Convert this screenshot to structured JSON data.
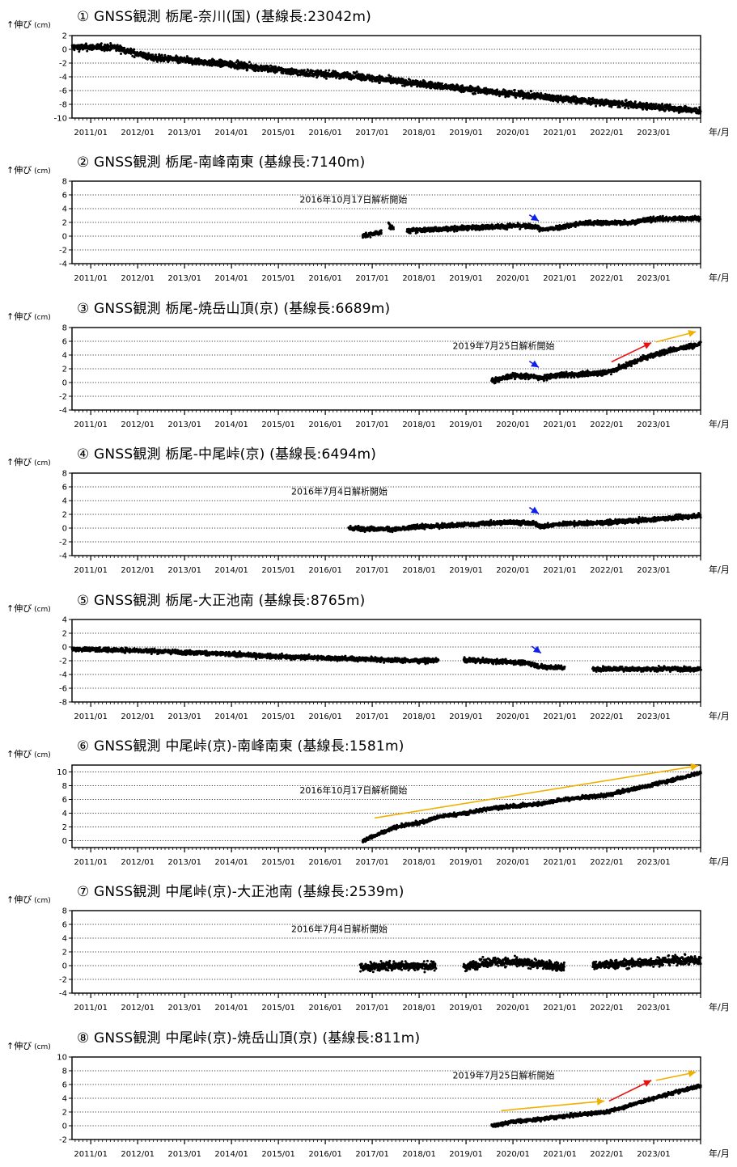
{
  "y_axis_label": "↑伸び",
  "y_axis_unit": "(cm)",
  "x_axis_unit": "年/月",
  "colors": {
    "blue_arrow": "#1020e8",
    "red_arrow": "#e81010",
    "yellow_arrow": "#f0b000",
    "data": "#000000"
  },
  "chart_data": [
    {
      "type": "scatter",
      "title": "① GNSS観測 栃尾-奈川(国) (基線長:23042m)",
      "xlabel": "年/月",
      "ylabel": "伸び (cm)",
      "xticks": [
        "2011/01",
        "2012/01",
        "2013/01",
        "2014/01",
        "2015/01",
        "2016/01",
        "2017/01",
        "2018/01",
        "2019/01",
        "2020/01",
        "2021/01",
        "2022/01",
        "2023/01"
      ],
      "xlim": [
        2010.6,
        2024.0
      ],
      "ylim": [
        -10,
        2
      ],
      "yticks": [
        2,
        0,
        -2,
        -4,
        -6,
        -8,
        -10
      ],
      "annotation": "",
      "series": [
        {
          "segments": [
            [
              2010.6,
              2024.0
            ]
          ],
          "values": [
            [
              2010.6,
              0.3
            ],
            [
              2011.5,
              0.3
            ],
            [
              2012.3,
              -1.2
            ],
            [
              2014.0,
              -2.2
            ],
            [
              2015.5,
              -3.4
            ],
            [
              2016.5,
              -3.8
            ],
            [
              2017.5,
              -4.6
            ],
            [
              2019.0,
              -5.8
            ],
            [
              2020.5,
              -6.8
            ],
            [
              2022.0,
              -7.8
            ],
            [
              2023.5,
              -8.6
            ],
            [
              2024.0,
              -9.0
            ]
          ],
          "noise": 0.45
        }
      ],
      "arrows": []
    },
    {
      "type": "scatter",
      "title": "② GNSS観測 栃尾-南峰南東 (基線長:7140m)",
      "xlabel": "年/月",
      "ylabel": "伸び (cm)",
      "xticks": [
        "2011/01",
        "2012/01",
        "2013/01",
        "2014/01",
        "2015/01",
        "2016/01",
        "2017/01",
        "2018/01",
        "2019/01",
        "2020/01",
        "2021/01",
        "2022/01",
        "2023/01"
      ],
      "xlim": [
        2010.6,
        2024.0
      ],
      "ylim": [
        -4,
        8
      ],
      "yticks": [
        8,
        6,
        4,
        2,
        0,
        -2,
        -4
      ],
      "annotation": "2016年10月17日解析開始",
      "series": [
        {
          "segments": [
            [
              2016.8,
              2017.2
            ],
            [
              2017.35,
              2017.45
            ],
            [
              2017.75,
              2024.0
            ]
          ],
          "values": [
            [
              2016.8,
              0.0
            ],
            [
              2017.2,
              0.6
            ],
            [
              2017.3,
              2.3
            ],
            [
              2017.4,
              1.2
            ],
            [
              2017.8,
              0.8
            ],
            [
              2019.0,
              1.2
            ],
            [
              2020.0,
              1.5
            ],
            [
              2020.5,
              1.4
            ],
            [
              2020.6,
              0.9
            ],
            [
              2021.0,
              1.3
            ],
            [
              2021.5,
              1.9
            ],
            [
              2022.5,
              2.0
            ],
            [
              2023.0,
              2.5
            ],
            [
              2024.0,
              2.6
            ]
          ],
          "noise": 0.32
        }
      ],
      "arrows": [
        {
          "color": "blue",
          "from": [
            2020.35,
            3.1
          ],
          "to": [
            2020.55,
            2.2
          ]
        }
      ]
    },
    {
      "type": "scatter",
      "title": "③ GNSS観測 栃尾-焼岳山頂(京) (基線長:6689m)",
      "xlabel": "年/月",
      "ylabel": "伸び (cm)",
      "xticks": [
        "2011/01",
        "2012/01",
        "2013/01",
        "2014/01",
        "2015/01",
        "2016/01",
        "2017/01",
        "2018/01",
        "2019/01",
        "2020/01",
        "2021/01",
        "2022/01",
        "2023/01"
      ],
      "xlim": [
        2010.6,
        2024.0
      ],
      "ylim": [
        -4,
        8
      ],
      "yticks": [
        8,
        6,
        4,
        2,
        0,
        -2,
        -4
      ],
      "annotation": "2019年7月25日解析開始",
      "series": [
        {
          "segments": [
            [
              2019.55,
              2024.0
            ]
          ],
          "values": [
            [
              2019.55,
              0.2
            ],
            [
              2020.0,
              1.0
            ],
            [
              2020.5,
              0.8
            ],
            [
              2020.6,
              0.6
            ],
            [
              2021.0,
              1.1
            ],
            [
              2021.5,
              1.2
            ],
            [
              2022.0,
              1.5
            ],
            [
              2022.3,
              2.2
            ],
            [
              2022.8,
              3.6
            ],
            [
              2023.3,
              4.6
            ],
            [
              2024.0,
              5.6
            ]
          ],
          "noise": 0.35
        }
      ],
      "arrows": [
        {
          "color": "blue",
          "from": [
            2020.35,
            3.1
          ],
          "to": [
            2020.55,
            2.2
          ]
        },
        {
          "color": "red",
          "from": [
            2022.1,
            3.0
          ],
          "to": [
            2022.95,
            5.8
          ]
        },
        {
          "color": "yellow",
          "from": [
            2023.05,
            5.9
          ],
          "to": [
            2023.9,
            7.4
          ]
        }
      ]
    },
    {
      "type": "scatter",
      "title": "④ GNSS観測 栃尾-中尾峠(京) (基線長:6494m)",
      "xlabel": "年/月",
      "ylabel": "伸び (cm)",
      "xticks": [
        "2011/01",
        "2012/01",
        "2013/01",
        "2014/01",
        "2015/01",
        "2016/01",
        "2017/01",
        "2018/01",
        "2019/01",
        "2020/01",
        "2021/01",
        "2022/01",
        "2023/01"
      ],
      "xlim": [
        2010.6,
        2024.0
      ],
      "ylim": [
        -4,
        8
      ],
      "yticks": [
        8,
        6,
        4,
        2,
        0,
        -2,
        -4
      ],
      "annotation": "2016年7月4日解析開始",
      "series": [
        {
          "segments": [
            [
              2016.5,
              2024.0
            ]
          ],
          "values": [
            [
              2016.5,
              0.0
            ],
            [
              2017.5,
              -0.2
            ],
            [
              2018.0,
              0.2
            ],
            [
              2019.0,
              0.5
            ],
            [
              2020.0,
              0.9
            ],
            [
              2020.5,
              0.6
            ],
            [
              2020.6,
              0.2
            ],
            [
              2021.0,
              0.6
            ],
            [
              2022.0,
              0.8
            ],
            [
              2023.0,
              1.3
            ],
            [
              2024.0,
              1.8
            ]
          ],
          "noise": 0.3
        }
      ],
      "arrows": [
        {
          "color": "blue",
          "from": [
            2020.35,
            3.0
          ],
          "to": [
            2020.55,
            2.1
          ]
        }
      ]
    },
    {
      "type": "scatter",
      "title": "⑤ GNSS観測 栃尾-大正池南 (基線長:8765m)",
      "xlabel": "年/月",
      "ylabel": "伸び (cm)",
      "xticks": [
        "2011/01",
        "2012/01",
        "2013/01",
        "2014/01",
        "2015/01",
        "2016/01",
        "2017/01",
        "2018/01",
        "2019/01",
        "2020/01",
        "2021/01",
        "2022/01",
        "2023/01"
      ],
      "xlim": [
        2010.6,
        2024.0
      ],
      "ylim": [
        -8,
        4
      ],
      "yticks": [
        4,
        2,
        0,
        -2,
        -4,
        -6,
        -8
      ],
      "annotation": "",
      "series": [
        {
          "segments": [
            [
              2010.6,
              2018.4
            ],
            [
              2018.95,
              2021.1
            ],
            [
              2021.7,
              2024.0
            ]
          ],
          "values": [
            [
              2010.6,
              -0.3
            ],
            [
              2012.0,
              -0.5
            ],
            [
              2013.5,
              -0.9
            ],
            [
              2015.0,
              -1.4
            ],
            [
              2016.5,
              -1.7
            ],
            [
              2018.0,
              -2.0
            ],
            [
              2019.0,
              -1.9
            ],
            [
              2020.3,
              -2.3
            ],
            [
              2020.6,
              -2.9
            ],
            [
              2021.1,
              -3.0
            ],
            [
              2021.7,
              -3.2
            ],
            [
              2024.0,
              -3.2
            ]
          ],
          "noise": 0.3
        }
      ],
      "arrows": [
        {
          "color": "blue",
          "from": [
            2020.4,
            0.1
          ],
          "to": [
            2020.6,
            -0.9
          ]
        }
      ]
    },
    {
      "type": "scatter",
      "title": "⑥ GNSS観測 中尾峠(京)-南峰南東 (基線長:1581m)",
      "xlabel": "年/月",
      "ylabel": "伸び (cm)",
      "xticks": [
        "2011/01",
        "2012/01",
        "2013/01",
        "2014/01",
        "2015/01",
        "2016/01",
        "2017/01",
        "2018/01",
        "2019/01",
        "2020/01",
        "2021/01",
        "2022/01",
        "2023/01"
      ],
      "xlim": [
        2010.6,
        2024.0
      ],
      "ylim": [
        -1,
        11
      ],
      "yticks": [
        10,
        8,
        6,
        4,
        2,
        0
      ],
      "annotation": "2016年10月17日解析開始",
      "series": [
        {
          "segments": [
            [
              2016.8,
              2024.0
            ]
          ],
          "values": [
            [
              2016.8,
              0.0
            ],
            [
              2017.2,
              1.1
            ],
            [
              2017.5,
              2.0
            ],
            [
              2018.0,
              2.6
            ],
            [
              2018.5,
              3.6
            ],
            [
              2019.0,
              4.0
            ],
            [
              2019.5,
              4.7
            ],
            [
              2020.0,
              5.0
            ],
            [
              2020.5,
              5.3
            ],
            [
              2021.0,
              5.9
            ],
            [
              2021.5,
              6.3
            ],
            [
              2022.0,
              6.6
            ],
            [
              2022.5,
              7.4
            ],
            [
              2023.0,
              8.2
            ],
            [
              2023.5,
              9.0
            ],
            [
              2024.0,
              9.9
            ]
          ],
          "noise": 0.25
        }
      ],
      "arrows": [
        {
          "color": "yellow",
          "from": [
            2017.05,
            3.3
          ],
          "to": [
            2023.95,
            10.9
          ]
        }
      ]
    },
    {
      "type": "scatter",
      "title": "⑦ GNSS観測 中尾峠(京)-大正池南 (基線長:2539m)",
      "xlabel": "年/月",
      "ylabel": "伸び (cm)",
      "xticks": [
        "2011/01",
        "2012/01",
        "2013/01",
        "2014/01",
        "2015/01",
        "2016/01",
        "2017/01",
        "2018/01",
        "2019/01",
        "2020/01",
        "2021/01",
        "2022/01",
        "2023/01"
      ],
      "xlim": [
        2010.6,
        2024.0
      ],
      "ylim": [
        -4,
        8
      ],
      "yticks": [
        8,
        6,
        4,
        2,
        0,
        -2,
        -4
      ],
      "annotation": "2016年7月4日解析開始",
      "series": [
        {
          "segments": [
            [
              2016.75,
              2018.35
            ],
            [
              2018.95,
              2021.1
            ],
            [
              2021.7,
              2024.0
            ]
          ],
          "values": [
            [
              2016.75,
              -0.3
            ],
            [
              2017.5,
              0.0
            ],
            [
              2018.3,
              -0.1
            ],
            [
              2019.0,
              -0.1
            ],
            [
              2019.6,
              0.6
            ],
            [
              2020.5,
              0.3
            ],
            [
              2021.0,
              -0.2
            ],
            [
              2021.7,
              0.0
            ],
            [
              2022.5,
              0.3
            ],
            [
              2023.5,
              0.8
            ],
            [
              2024.0,
              0.7
            ]
          ],
          "noise": 0.6
        }
      ],
      "arrows": []
    },
    {
      "type": "scatter",
      "title": "⑧ GNSS観測 中尾峠(京)-焼岳山頂(京) (基線長:811m)",
      "xlabel": "年/月",
      "ylabel": "伸び (cm)",
      "xticks": [
        "2011/01",
        "2012/01",
        "2013/01",
        "2014/01",
        "2015/01",
        "2016/01",
        "2017/01",
        "2018/01",
        "2019/01",
        "2020/01",
        "2021/01",
        "2022/01",
        "2023/01"
      ],
      "xlim": [
        2010.6,
        2024.0
      ],
      "ylim": [
        -2,
        10
      ],
      "yticks": [
        10,
        8,
        6,
        4,
        2,
        0,
        -2
      ],
      "annotation": "2019年7月25日解析開始",
      "series": [
        {
          "segments": [
            [
              2019.55,
              2024.0
            ]
          ],
          "values": [
            [
              2019.55,
              0.0
            ],
            [
              2020.0,
              0.6
            ],
            [
              2020.5,
              0.9
            ],
            [
              2021.0,
              1.3
            ],
            [
              2021.5,
              1.7
            ],
            [
              2022.0,
              2.0
            ],
            [
              2022.3,
              2.6
            ],
            [
              2022.8,
              3.6
            ],
            [
              2023.3,
              4.6
            ],
            [
              2024.0,
              5.8
            ]
          ],
          "noise": 0.25
        }
      ],
      "arrows": [
        {
          "color": "yellow",
          "from": [
            2019.75,
            2.2
          ],
          "to": [
            2021.95,
            3.6
          ]
        },
        {
          "color": "red",
          "from": [
            2022.05,
            3.6
          ],
          "to": [
            2022.95,
            6.6
          ]
        },
        {
          "color": "yellow",
          "from": [
            2023.05,
            6.6
          ],
          "to": [
            2023.9,
            7.8
          ]
        }
      ]
    }
  ]
}
